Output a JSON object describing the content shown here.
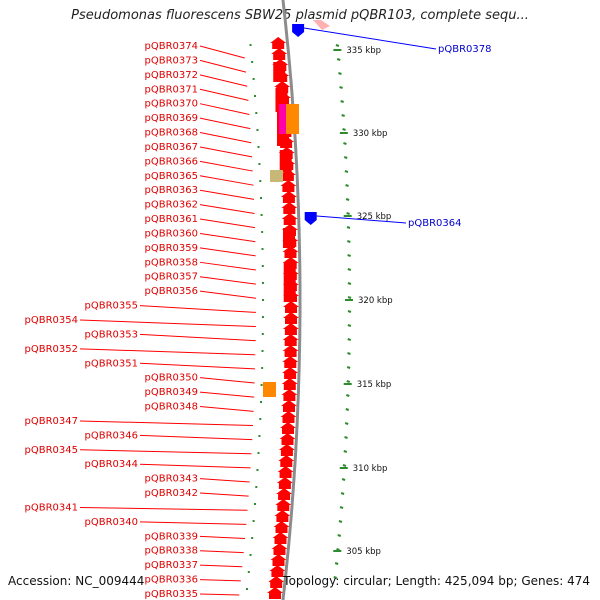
{
  "title": "Pseudomonas fluorescens SBW25 plasmid pQBR103, complete sequ...",
  "accession_label": "Accession: NC_009444",
  "summary_label": "Topology: circular; Length: 425,094 bp; Genes: 474",
  "colors": {
    "gene_forward": "#ff0000",
    "gene_reverse": "#0000ff",
    "backbone": "#8c8c8c",
    "tick": "#2e8b2e",
    "label_red": "#dd0000",
    "label_blue": "#0000cc",
    "orange_feature": "#ff8800",
    "tan_feature": "#c8b878",
    "magenta_feature": "#ff00aa"
  },
  "scale_labels": [
    "335 kbp",
    "330 kbp",
    "325 kbp",
    "320 kbp",
    "315 kbp",
    "310 kbp",
    "305 kbp"
  ],
  "blue_genes": [
    "pQBR0378",
    "pQBR0364"
  ],
  "red_genes": [
    "pQBR0374",
    "pQBR0373",
    "pQBR0372",
    "pQBR0371",
    "pQBR0370",
    "pQBR0369",
    "pQBR0368",
    "pQBR0367",
    "pQBR0366",
    "pQBR0365",
    "pQBR0363",
    "pQBR0362",
    "pQBR0361",
    "pQBR0360",
    "pQBR0359",
    "pQBR0358",
    "pQBR0357",
    "pQBR0356",
    "pQBR0355",
    "pQBR0354",
    "pQBR0353",
    "pQBR0352",
    "pQBR0351",
    "pQBR0350",
    "pQBR0349",
    "pQBR0348",
    "pQBR0347",
    "pQBR0346",
    "pQBR0345",
    "pQBR0344",
    "pQBR0343",
    "pQBR0342",
    "pQBR0341",
    "pQBR0340",
    "pQBR0339",
    "pQBR0338",
    "pQBR0337",
    "pQBR0336",
    "pQBR0335"
  ]
}
